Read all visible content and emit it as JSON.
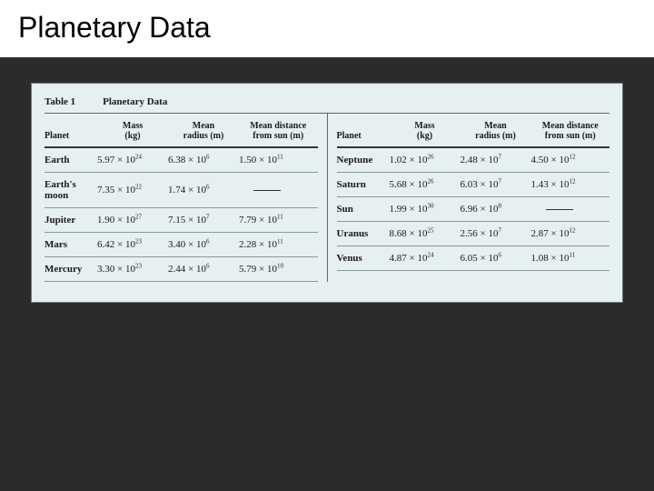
{
  "slide": {
    "title": "Planetary Data"
  },
  "table": {
    "label": "Table 1",
    "title": "Planetary Data",
    "headers": {
      "planet": "Planet",
      "mass": "Mass",
      "mass_unit": "(kg)",
      "radius": "Mean",
      "radius_sub": "radius (m)",
      "dist": "Mean distance",
      "dist_sub": "from sun (m)"
    },
    "colors": {
      "page_bg": "#2b2b2b",
      "titlebar_bg": "#ffffff",
      "table_bg": "#e6eff1",
      "table_border": "#6a7a7d",
      "row_border": "#8a9a9d",
      "header_rule": "#2a3a3d"
    },
    "left_rows": [
      {
        "planet": "Earth",
        "mass_c": "5.97",
        "mass_e": "24",
        "rad_c": "6.38",
        "rad_e": "6",
        "dist_c": "1.50",
        "dist_e": "11"
      },
      {
        "planet": "Earth's moon",
        "mass_c": "7.35",
        "mass_e": "22",
        "rad_c": "1.74",
        "rad_e": "6",
        "dist_c": "",
        "dist_e": ""
      },
      {
        "planet": "Jupiter",
        "mass_c": "1.90",
        "mass_e": "27",
        "rad_c": "7.15",
        "rad_e": "7",
        "dist_c": "7.79",
        "dist_e": "11"
      },
      {
        "planet": "Mars",
        "mass_c": "6.42",
        "mass_e": "23",
        "rad_c": "3.40",
        "rad_e": "6",
        "dist_c": "2.28",
        "dist_e": "11"
      },
      {
        "planet": "Mercury",
        "mass_c": "3.30",
        "mass_e": "23",
        "rad_c": "2.44",
        "rad_e": "6",
        "dist_c": "5.79",
        "dist_e": "10"
      }
    ],
    "right_rows": [
      {
        "planet": "Neptune",
        "mass_c": "1.02",
        "mass_e": "26",
        "rad_c": "2.48",
        "rad_e": "7",
        "dist_c": "4.50",
        "dist_e": "12"
      },
      {
        "planet": "Saturn",
        "mass_c": "5.68",
        "mass_e": "26",
        "rad_c": "6.03",
        "rad_e": "7",
        "dist_c": "1.43",
        "dist_e": "12"
      },
      {
        "planet": "Sun",
        "mass_c": "1.99",
        "mass_e": "30",
        "rad_c": "6.96",
        "rad_e": "8",
        "dist_c": "",
        "dist_e": ""
      },
      {
        "planet": "Uranus",
        "mass_c": "8.68",
        "mass_e": "25",
        "rad_c": "2.56",
        "rad_e": "7",
        "dist_c": "2.87",
        "dist_e": "12"
      },
      {
        "planet": "Venus",
        "mass_c": "4.87",
        "mass_e": "24",
        "rad_c": "6.05",
        "rad_e": "6",
        "dist_c": "1.08",
        "dist_e": "11"
      }
    ]
  }
}
